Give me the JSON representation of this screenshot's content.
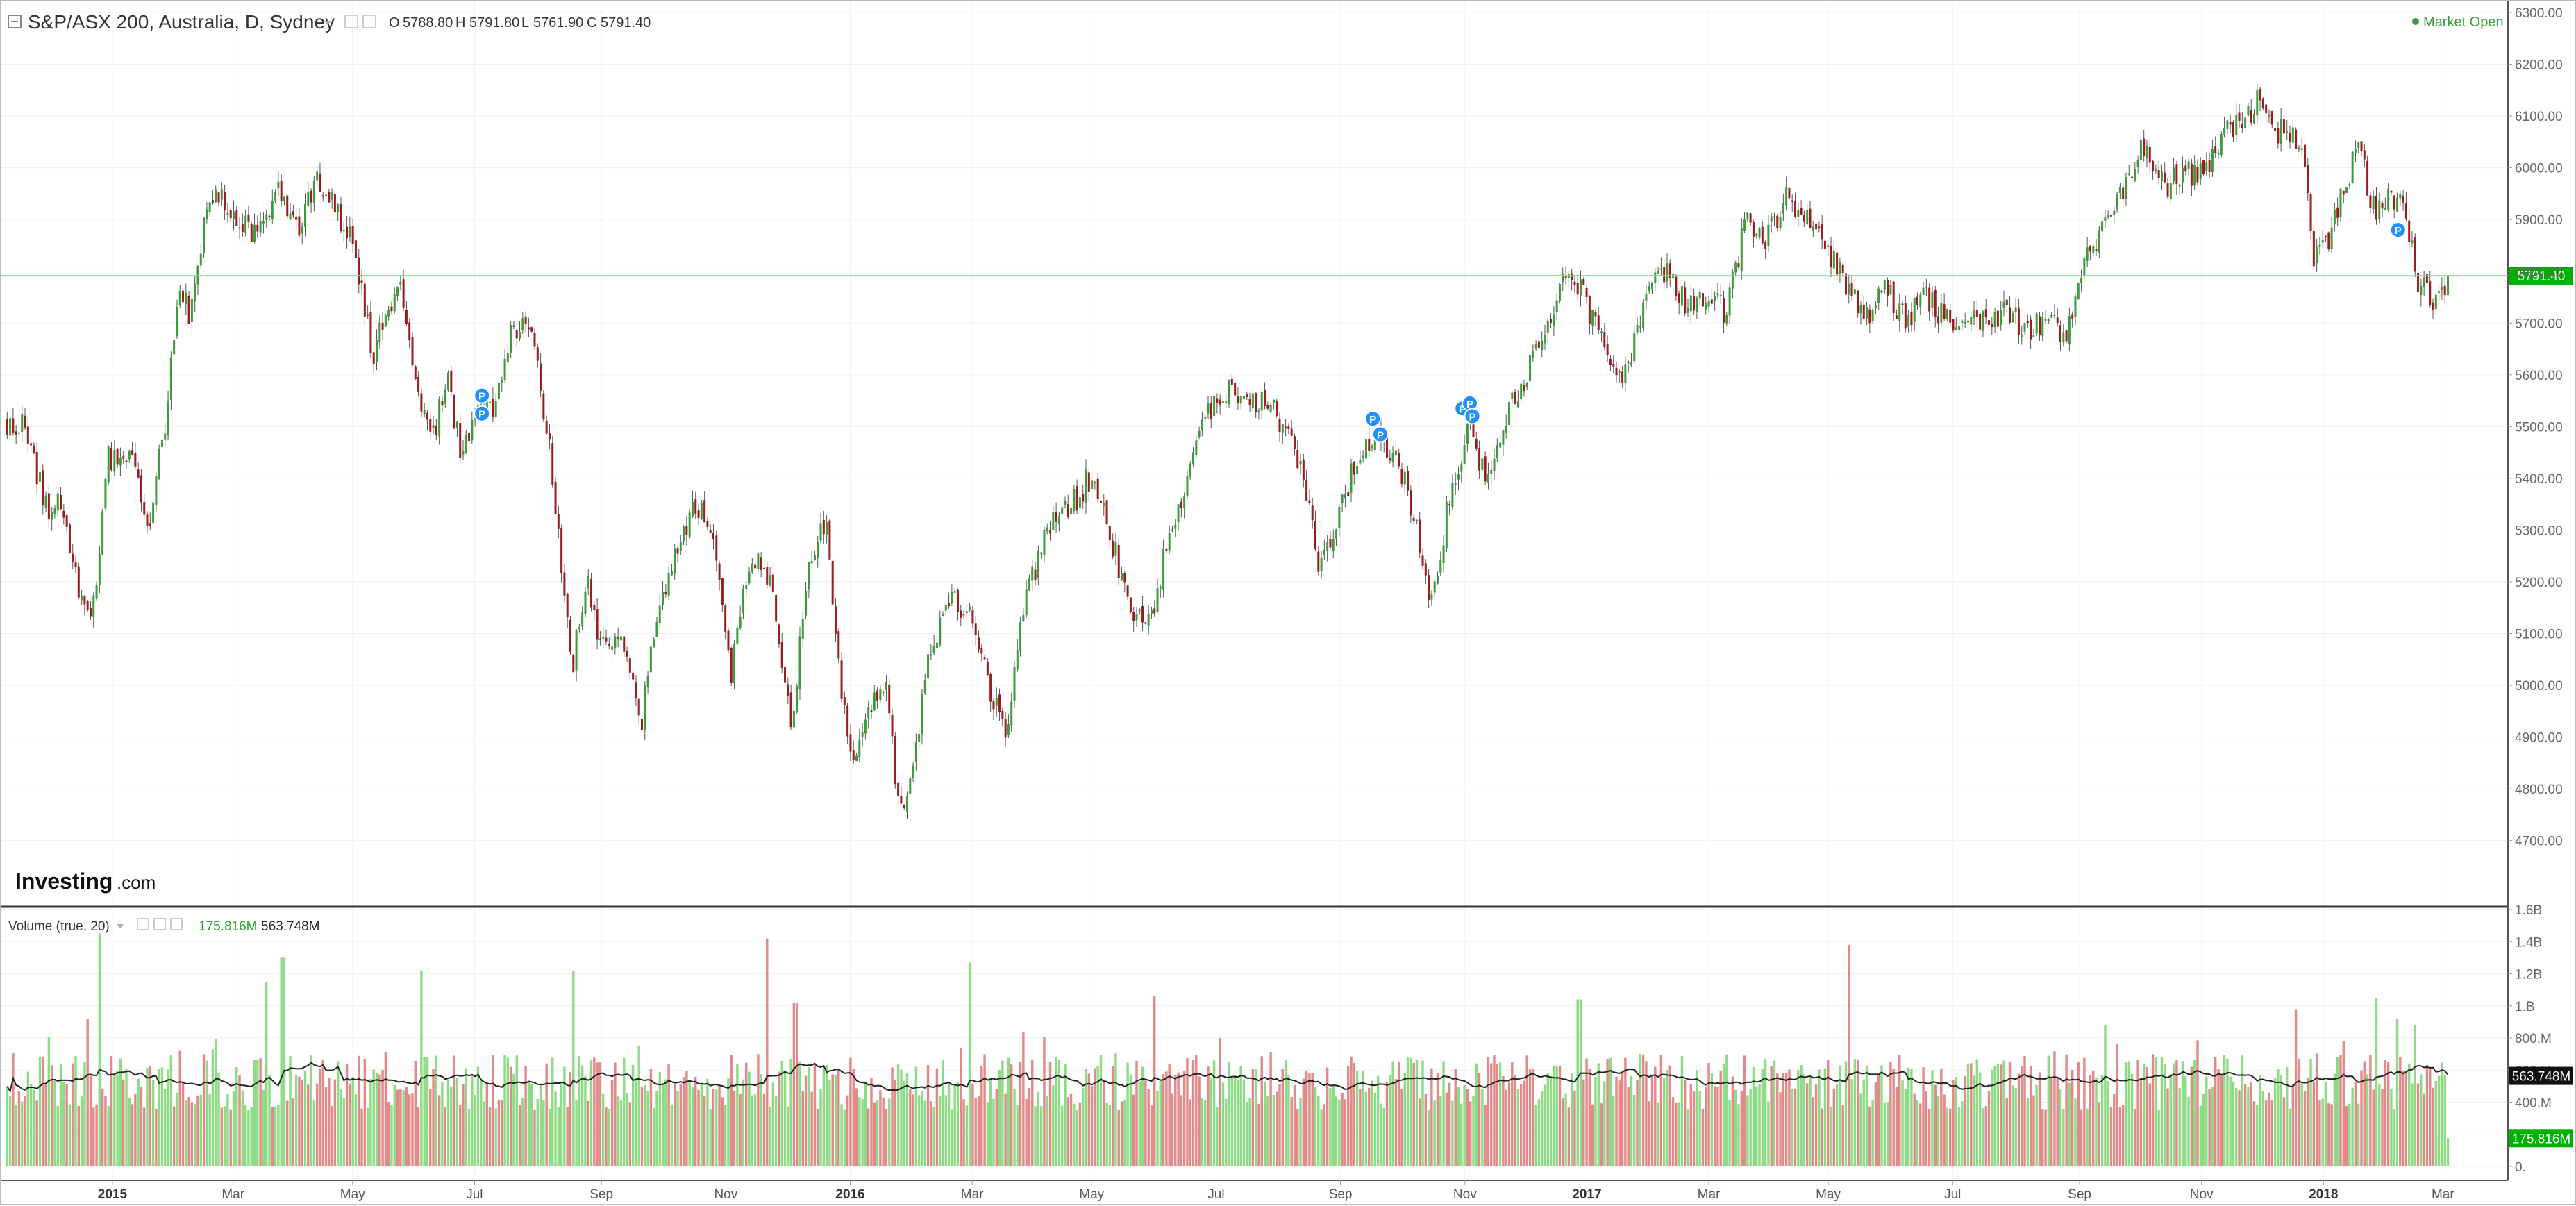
{
  "header": {
    "title": "S&P/ASX 200, Australia, D, Sydney",
    "ohlc": [
      {
        "label": "O",
        "value": "5788.80"
      },
      {
        "label": "H",
        "value": "5791.80"
      },
      {
        "label": "L",
        "value": "5761.90"
      },
      {
        "label": "C",
        "value": "5791.40"
      }
    ],
    "market_status": "Market Open"
  },
  "volume_header": {
    "title": "Volume (true, 20)",
    "value_green": "175.816M",
    "value_dark": "563.748M"
  },
  "logo": {
    "text_main": "Investing",
    "text_suffix": ".com"
  },
  "colors": {
    "up": "#3c9b3c",
    "down": "#9b1c1c",
    "vol_up": "#8edb85",
    "vol_down": "#e08a8a",
    "last_price": "#00b000",
    "marker": "#1e90ff",
    "ma_line": "#222222"
  },
  "chart_data": [
    {
      "type": "candlestick",
      "ylim": [
        4650,
        6300
      ],
      "y_ticks": [
        "6300.00",
        "6200.00",
        "6100.00",
        "6000.00",
        "5900.00",
        "5800.00",
        "5700.00",
        "5600.00",
        "5500.00",
        "5400.00",
        "5300.00",
        "5200.00",
        "5100.00",
        "5000.00",
        "4900.00",
        "4800.00",
        "4700.00"
      ],
      "x_ticks": [
        {
          "label": "2015",
          "bold": true
        },
        {
          "label": "Mar",
          "bold": false
        },
        {
          "label": "May",
          "bold": false
        },
        {
          "label": "Jul",
          "bold": false
        },
        {
          "label": "Sep",
          "bold": false
        },
        {
          "label": "Nov",
          "bold": false
        },
        {
          "label": "2016",
          "bold": true
        },
        {
          "label": "Mar",
          "bold": false
        },
        {
          "label": "May",
          "bold": false
        },
        {
          "label": "Jul",
          "bold": false
        },
        {
          "label": "Sep",
          "bold": false
        },
        {
          "label": "Nov",
          "bold": false
        },
        {
          "label": "2017",
          "bold": true
        },
        {
          "label": "Mar",
          "bold": false
        },
        {
          "label": "May",
          "bold": false
        },
        {
          "label": "Jul",
          "bold": false
        },
        {
          "label": "Sep",
          "bold": false
        },
        {
          "label": "Nov",
          "bold": false
        },
        {
          "label": "2018",
          "bold": true
        },
        {
          "label": "Mar",
          "bold": false
        }
      ],
      "last_price": 5791.4,
      "last_price_label": "5791.40",
      "markers": [
        {
          "t": 0.192,
          "price": 5560
        },
        {
          "t": 0.192,
          "price": 5525
        },
        {
          "t": 0.55,
          "price": 5515
        },
        {
          "t": 0.553,
          "price": 5485
        },
        {
          "t": 0.586,
          "price": 5535
        },
        {
          "t": 0.589,
          "price": 5545
        },
        {
          "t": 0.59,
          "price": 5520
        },
        {
          "t": 0.962,
          "price": 5880
        }
      ],
      "marker_label": "P",
      "path": [
        {
          "t": 0.0,
          "price": 5510
        },
        {
          "t": 0.008,
          "price": 5500
        },
        {
          "t": 0.018,
          "price": 5320
        },
        {
          "t": 0.022,
          "price": 5360
        },
        {
          "t": 0.03,
          "price": 5180
        },
        {
          "t": 0.036,
          "price": 5150
        },
        {
          "t": 0.042,
          "price": 5440
        },
        {
          "t": 0.05,
          "price": 5450
        },
        {
          "t": 0.058,
          "price": 5300
        },
        {
          "t": 0.065,
          "price": 5520
        },
        {
          "t": 0.07,
          "price": 5760
        },
        {
          "t": 0.075,
          "price": 5720
        },
        {
          "t": 0.082,
          "price": 5960
        },
        {
          "t": 0.09,
          "price": 5930
        },
        {
          "t": 0.1,
          "price": 5870
        },
        {
          "t": 0.11,
          "price": 5960
        },
        {
          "t": 0.118,
          "price": 5880
        },
        {
          "t": 0.126,
          "price": 5990
        },
        {
          "t": 0.133,
          "price": 5920
        },
        {
          "t": 0.14,
          "price": 5850
        },
        {
          "t": 0.148,
          "price": 5640
        },
        {
          "t": 0.154,
          "price": 5710
        },
        {
          "t": 0.16,
          "price": 5760
        },
        {
          "t": 0.166,
          "price": 5560
        },
        {
          "t": 0.172,
          "price": 5470
        },
        {
          "t": 0.178,
          "price": 5600
        },
        {
          "t": 0.184,
          "price": 5440
        },
        {
          "t": 0.19,
          "price": 5560
        },
        {
          "t": 0.196,
          "price": 5520
        },
        {
          "t": 0.204,
          "price": 5700
        },
        {
          "t": 0.212,
          "price": 5680
        },
        {
          "t": 0.22,
          "price": 5420
        },
        {
          "t": 0.228,
          "price": 5030
        },
        {
          "t": 0.234,
          "price": 5200
        },
        {
          "t": 0.24,
          "price": 5080
        },
        {
          "t": 0.248,
          "price": 5110
        },
        {
          "t": 0.256,
          "price": 4920
        },
        {
          "t": 0.262,
          "price": 5140
        },
        {
          "t": 0.27,
          "price": 5250
        },
        {
          "t": 0.278,
          "price": 5360
        },
        {
          "t": 0.284,
          "price": 5300
        },
        {
          "t": 0.292,
          "price": 5020
        },
        {
          "t": 0.3,
          "price": 5250
        },
        {
          "t": 0.308,
          "price": 5200
        },
        {
          "t": 0.316,
          "price": 4920
        },
        {
          "t": 0.324,
          "price": 5250
        },
        {
          "t": 0.33,
          "price": 5320
        },
        {
          "t": 0.336,
          "price": 5000
        },
        {
          "t": 0.342,
          "price": 4850
        },
        {
          "t": 0.348,
          "price": 4950
        },
        {
          "t": 0.354,
          "price": 5010
        },
        {
          "t": 0.36,
          "price": 4750
        },
        {
          "t": 0.366,
          "price": 4880
        },
        {
          "t": 0.372,
          "price": 5060
        },
        {
          "t": 0.38,
          "price": 5180
        },
        {
          "t": 0.388,
          "price": 5140
        },
        {
          "t": 0.396,
          "price": 5000
        },
        {
          "t": 0.402,
          "price": 4900
        },
        {
          "t": 0.41,
          "price": 5150
        },
        {
          "t": 0.42,
          "price": 5320
        },
        {
          "t": 0.428,
          "price": 5340
        },
        {
          "t": 0.436,
          "price": 5400
        },
        {
          "t": 0.444,
          "price": 5300
        },
        {
          "t": 0.452,
          "price": 5150
        },
        {
          "t": 0.46,
          "price": 5120
        },
        {
          "t": 0.468,
          "price": 5280
        },
        {
          "t": 0.476,
          "price": 5420
        },
        {
          "t": 0.484,
          "price": 5520
        },
        {
          "t": 0.492,
          "price": 5580
        },
        {
          "t": 0.5,
          "price": 5540
        },
        {
          "t": 0.508,
          "price": 5560
        },
        {
          "t": 0.516,
          "price": 5480
        },
        {
          "t": 0.522,
          "price": 5420
        },
        {
          "t": 0.528,
          "price": 5220
        },
        {
          "t": 0.536,
          "price": 5330
        },
        {
          "t": 0.544,
          "price": 5450
        },
        {
          "t": 0.552,
          "price": 5490
        },
        {
          "t": 0.56,
          "price": 5440
        },
        {
          "t": 0.568,
          "price": 5300
        },
        {
          "t": 0.574,
          "price": 5150
        },
        {
          "t": 0.58,
          "price": 5340
        },
        {
          "t": 0.588,
          "price": 5500
        },
        {
          "t": 0.596,
          "price": 5400
        },
        {
          "t": 0.604,
          "price": 5530
        },
        {
          "t": 0.612,
          "price": 5600
        },
        {
          "t": 0.62,
          "price": 5700
        },
        {
          "t": 0.628,
          "price": 5800
        },
        {
          "t": 0.636,
          "price": 5740
        },
        {
          "t": 0.644,
          "price": 5640
        },
        {
          "t": 0.652,
          "price": 5600
        },
        {
          "t": 0.66,
          "price": 5760
        },
        {
          "t": 0.668,
          "price": 5790
        },
        {
          "t": 0.676,
          "price": 5740
        },
        {
          "t": 0.684,
          "price": 5750
        },
        {
          "t": 0.692,
          "price": 5720
        },
        {
          "t": 0.7,
          "price": 5900
        },
        {
          "t": 0.708,
          "price": 5860
        },
        {
          "t": 0.716,
          "price": 5940
        },
        {
          "t": 0.724,
          "price": 5900
        },
        {
          "t": 0.732,
          "price": 5850
        },
        {
          "t": 0.74,
          "price": 5780
        },
        {
          "t": 0.748,
          "price": 5700
        },
        {
          "t": 0.756,
          "price": 5770
        },
        {
          "t": 0.764,
          "price": 5700
        },
        {
          "t": 0.772,
          "price": 5760
        },
        {
          "t": 0.78,
          "price": 5700
        },
        {
          "t": 0.788,
          "price": 5720
        },
        {
          "t": 0.796,
          "price": 5700
        },
        {
          "t": 0.804,
          "price": 5730
        },
        {
          "t": 0.812,
          "price": 5690
        },
        {
          "t": 0.82,
          "price": 5700
        },
        {
          "t": 0.828,
          "price": 5680
        },
        {
          "t": 0.836,
          "price": 5810
        },
        {
          "t": 0.844,
          "price": 5900
        },
        {
          "t": 0.852,
          "price": 5960
        },
        {
          "t": 0.86,
          "price": 6040
        },
        {
          "t": 0.868,
          "price": 5960
        },
        {
          "t": 0.876,
          "price": 6000
        },
        {
          "t": 0.884,
          "price": 5980
        },
        {
          "t": 0.892,
          "price": 6070
        },
        {
          "t": 0.9,
          "price": 6090
        },
        {
          "t": 0.906,
          "price": 6130
        },
        {
          "t": 0.912,
          "price": 6060
        },
        {
          "t": 0.918,
          "price": 6080
        },
        {
          "t": 0.924,
          "price": 6010
        },
        {
          "t": 0.928,
          "price": 5820
        },
        {
          "t": 0.934,
          "price": 5850
        },
        {
          "t": 0.94,
          "price": 5960
        },
        {
          "t": 0.946,
          "price": 6040
        },
        {
          "t": 0.952,
          "price": 5920
        },
        {
          "t": 0.958,
          "price": 5950
        },
        {
          "t": 0.964,
          "price": 5940
        },
        {
          "t": 0.97,
          "price": 5780
        },
        {
          "t": 0.976,
          "price": 5740
        },
        {
          "t": 0.982,
          "price": 5791
        }
      ]
    },
    {
      "type": "bar",
      "series_name": "Volume (true, 20)",
      "ylim": [
        0,
        1.6
      ],
      "units": "billions",
      "y_ticks": [
        "1.6B",
        "1.4B",
        "1.2B",
        "1.B",
        "800.M",
        "600.M",
        "400.M",
        "200.M",
        "0."
      ],
      "spikes": [
        {
          "t": 0.038,
          "value": 1.45,
          "up": true
        },
        {
          "t": 0.105,
          "value": 1.15,
          "up": true
        },
        {
          "t": 0.112,
          "value": 1.3,
          "up": true
        },
        {
          "t": 0.168,
          "value": 1.22,
          "up": true
        },
        {
          "t": 0.229,
          "value": 1.22,
          "up": true
        },
        {
          "t": 0.307,
          "value": 1.42,
          "up": false
        },
        {
          "t": 0.318,
          "value": 1.02,
          "up": false
        },
        {
          "t": 0.388,
          "value": 1.27,
          "up": true
        },
        {
          "t": 0.462,
          "value": 1.06,
          "up": false
        },
        {
          "t": 0.633,
          "value": 1.04,
          "up": true
        },
        {
          "t": 0.741,
          "value": 1.38,
          "up": false
        },
        {
          "t": 0.921,
          "value": 0.98,
          "up": false
        },
        {
          "t": 0.953,
          "value": 1.05,
          "up": true
        },
        {
          "t": 0.962,
          "value": 0.92,
          "up": true
        }
      ],
      "current_value_label": "175.816M",
      "ma_value_label": "563.748M",
      "ma_value": 0.564,
      "current_value": 0.176
    }
  ]
}
